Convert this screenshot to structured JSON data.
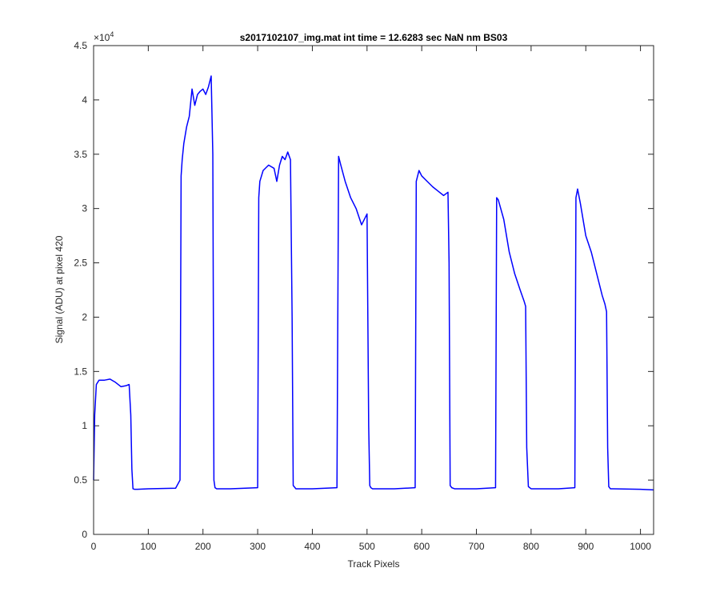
{
  "chart_data": {
    "type": "line",
    "title": "s2017102107_img.mat int time = 12.6283 sec  NaN nm BS03",
    "xlabel": "Track Pixels",
    "ylabel": "Signal (ADU) at pixel 420",
    "y_exponent_label": "×10",
    "y_exponent_power": "4",
    "xlim": [
      0,
      1024
    ],
    "ylim": [
      0,
      45000
    ],
    "x_ticks": [
      0,
      100,
      200,
      300,
      400,
      500,
      600,
      700,
      800,
      900,
      1000
    ],
    "x_tick_labels": [
      "0",
      "100",
      "200",
      "300",
      "400",
      "500",
      "600",
      "700",
      "800",
      "900",
      "1000"
    ],
    "y_ticks": [
      0,
      5000,
      10000,
      15000,
      20000,
      25000,
      30000,
      35000,
      40000,
      45000
    ],
    "y_tick_labels": [
      "0",
      "0.5",
      "1",
      "1.5",
      "2",
      "2.5",
      "3",
      "3.5",
      "4",
      "4.5"
    ],
    "grid": false,
    "series": [
      {
        "color": "#0000ff",
        "x": [
          0,
          2,
          5,
          10,
          20,
          30,
          40,
          50,
          60,
          65,
          68,
          70,
          72,
          75,
          80,
          100,
          150,
          158,
          160,
          162,
          165,
          170,
          175,
          180,
          185,
          190,
          195,
          200,
          205,
          210,
          215,
          218,
          220,
          222,
          225,
          250,
          300,
          302,
          304,
          310,
          320,
          330,
          335,
          340,
          345,
          350,
          355,
          360,
          363,
          365,
          370,
          400,
          445,
          448,
          452,
          460,
          470,
          480,
          490,
          500,
          503,
          505,
          507,
          510,
          550,
          588,
          590,
          595,
          600,
          610,
          620,
          630,
          640,
          648,
          650,
          652,
          655,
          660,
          700,
          735,
          737,
          740,
          750,
          760,
          770,
          780,
          787,
          790,
          792,
          795,
          800,
          850,
          880,
          882,
          885,
          890,
          900,
          910,
          920,
          930,
          935,
          938,
          940,
          942,
          945,
          950,
          1000,
          1024
        ],
        "y": [
          5000,
          11000,
          13800,
          14200,
          14200,
          14300,
          14000,
          13600,
          13700,
          13800,
          11000,
          6000,
          4200,
          4150,
          4150,
          4200,
          4250,
          5000,
          33000,
          34500,
          36000,
          37500,
          38500,
          41000,
          39500,
          40500,
          40800,
          41000,
          40500,
          41200,
          42200,
          35000,
          5000,
          4300,
          4200,
          4200,
          4300,
          31000,
          32500,
          33500,
          34000,
          33700,
          32500,
          34000,
          34800,
          34500,
          35200,
          34500,
          20000,
          4500,
          4200,
          4200,
          4300,
          34800,
          34000,
          32500,
          31000,
          30000,
          28500,
          29500,
          10000,
          4500,
          4300,
          4200,
          4200,
          4300,
          32500,
          33500,
          33000,
          32500,
          32000,
          31600,
          31200,
          31500,
          25000,
          4500,
          4300,
          4200,
          4200,
          4300,
          31000,
          30800,
          29000,
          26000,
          24000,
          22500,
          21500,
          21000,
          8000,
          4400,
          4200,
          4200,
          4300,
          31000,
          31800,
          30500,
          27500,
          26000,
          24000,
          22000,
          21200,
          20500,
          8000,
          4400,
          4200,
          4200,
          4150,
          4100
        ]
      }
    ]
  }
}
